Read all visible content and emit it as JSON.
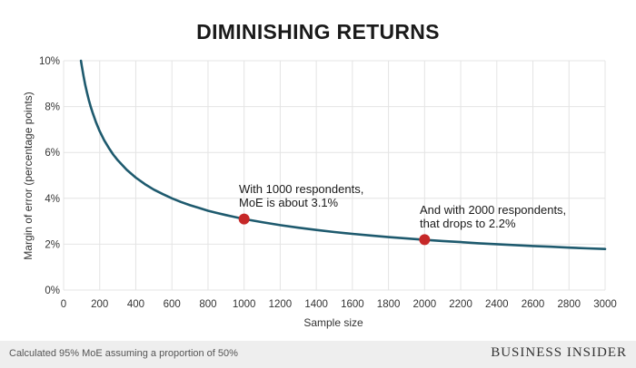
{
  "chart_data": {
    "type": "line",
    "title": "DIMINISHING RETURNS",
    "xlabel": "Sample size",
    "ylabel": "Margin of error (percentage points)",
    "xlim": [
      0,
      3000
    ],
    "ylim": [
      0,
      10
    ],
    "x_ticks": [
      "0",
      "200",
      "400",
      "600",
      "800",
      "1000",
      "1200",
      "1400",
      "1600",
      "1800",
      "2000",
      "2200",
      "2400",
      "2600",
      "2800",
      "3000"
    ],
    "y_ticks": [
      "0%",
      "2%",
      "4%",
      "6%",
      "8%",
      "10%"
    ],
    "grid": true,
    "series": [
      {
        "color": "#1e5a6e",
        "x": [
          96,
          100,
          110,
          120,
          130,
          140,
          150,
          160,
          180,
          200,
          225,
          250,
          275,
          300,
          350,
          400,
          450,
          500,
          550,
          600,
          650,
          700,
          750,
          800,
          850,
          900,
          950,
          1000,
          1100,
          1200,
          1300,
          1400,
          1500,
          1600,
          1700,
          1800,
          1900,
          2000,
          2100,
          2200,
          2300,
          2400,
          2500,
          2600,
          2700,
          2800,
          2900,
          3000
        ],
        "y": [
          10.0,
          9.8,
          9.34,
          8.95,
          8.6,
          8.28,
          8.0,
          7.75,
          7.3,
          6.93,
          6.53,
          6.2,
          5.91,
          5.66,
          5.24,
          4.9,
          4.62,
          4.38,
          4.18,
          4.0,
          3.84,
          3.7,
          3.58,
          3.46,
          3.36,
          3.27,
          3.18,
          3.1,
          2.96,
          2.83,
          2.72,
          2.62,
          2.53,
          2.45,
          2.38,
          2.31,
          2.25,
          2.19,
          2.14,
          2.09,
          2.04,
          2.0,
          1.96,
          1.92,
          1.89,
          1.85,
          1.82,
          1.79
        ]
      }
    ],
    "highlight_points": [
      {
        "x": 1000,
        "y": 3.1,
        "color": "#c62828"
      },
      {
        "x": 2000,
        "y": 2.2,
        "color": "#c62828"
      }
    ],
    "annotations": [
      {
        "line1": "With 1000 respondents,",
        "line2": "MoE is about 3.1%"
      },
      {
        "line1": "And with 2000 respondents,",
        "line2": "that drops to 2.2%"
      }
    ]
  },
  "footer": {
    "note": "Calculated 95% MoE assuming a proportion of 50%",
    "brand": "BUSINESS INSIDER"
  }
}
